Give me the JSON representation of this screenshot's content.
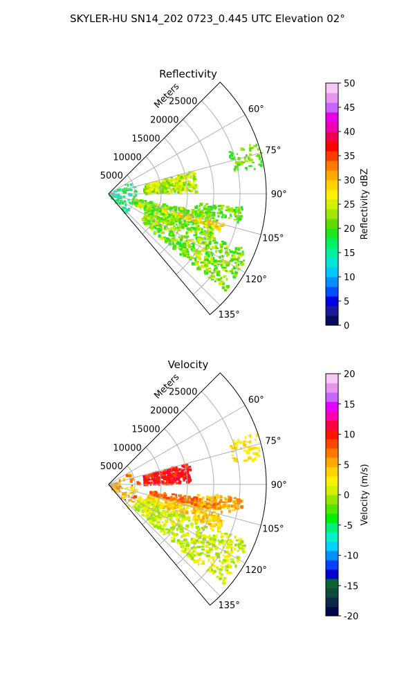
{
  "figure": {
    "suptitle": "SKYLER-HU  SN14_202  0723_0.445 UTC Elevation 02°"
  },
  "chart_data": [
    {
      "type": "polar-sector",
      "title": "Reflectivity",
      "rlabel": "Meters",
      "r_ticks": [
        "5000",
        "10000",
        "15000",
        "20000",
        "25000"
      ],
      "r_tick_values": [
        5000,
        10000,
        15000,
        20000,
        25000
      ],
      "rlim": [
        0,
        30000
      ],
      "theta_ticks": [
        "60°",
        "75°",
        "90°",
        "105°",
        "120°",
        "135°"
      ],
      "theta_tick_values": [
        60,
        75,
        90,
        105,
        120,
        135
      ],
      "thetalim": [
        45,
        140
      ],
      "grid": true,
      "colorbar": {
        "label": "Reflectivity dBZ",
        "min": 0,
        "max": 50,
        "ticks": [
          "0",
          "5",
          "10",
          "15",
          "20",
          "25",
          "30",
          "35",
          "40",
          "45",
          "50"
        ]
      },
      "dominant_values": "mostly 15-25 dBZ, isolated cores 30-40 dBZ"
    },
    {
      "type": "polar-sector",
      "title": "Velocity",
      "rlabel": "Meters",
      "r_ticks": [
        "5000",
        "10000",
        "15000",
        "20000",
        "25000"
      ],
      "r_tick_values": [
        5000,
        10000,
        15000,
        20000,
        25000
      ],
      "rlim": [
        0,
        30000
      ],
      "theta_ticks": [
        "60°",
        "75°",
        "90°",
        "105°",
        "120°",
        "135°"
      ],
      "theta_tick_values": [
        60,
        75,
        90,
        105,
        120,
        135
      ],
      "thetalim": [
        45,
        140
      ],
      "grid": true,
      "colorbar": {
        "label": "Velocity (m/s)",
        "min": -20,
        "max": 20,
        "ticks": [
          "-20",
          "-15",
          "-10",
          "-5",
          "0",
          "5",
          "10",
          "15",
          "20"
        ]
      },
      "dominant_values": "north band 8-12 m/s, south region -5 to 3 m/s"
    }
  ],
  "colors": {
    "grid": "#b0b0b0",
    "axis": "#000000"
  }
}
